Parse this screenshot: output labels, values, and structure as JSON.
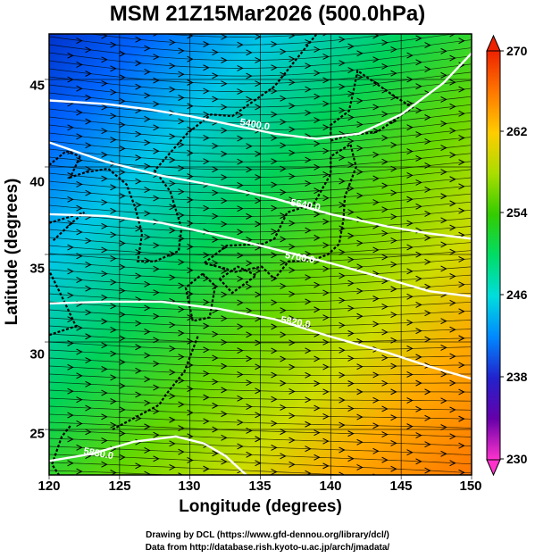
{
  "title": "MSM 21Z15Mar2026 (500.0hPa)",
  "x_axis": {
    "label": "Longitude (degrees)",
    "ticks": [
      "120",
      "125",
      "130",
      "135",
      "140",
      "145",
      "150"
    ]
  },
  "y_axis": {
    "label": "Latitude  (degrees)",
    "ticks": [
      "45",
      "40",
      "35",
      "30",
      "25"
    ]
  },
  "colorbar": {
    "ticks": [
      "270",
      "262",
      "254",
      "246",
      "238",
      "230"
    ],
    "min": 230,
    "max": 270,
    "colors": [
      "#ff33cc",
      "#6600aa",
      "#2222cc",
      "#0088ff",
      "#00dddd",
      "#00dd66",
      "#33cc00",
      "#aadd00",
      "#ffcc00",
      "#ff7700",
      "#ee2200"
    ]
  },
  "extent": {
    "lon": [
      120,
      150
    ],
    "lat": [
      22.4,
      47.6
    ]
  },
  "contours": [
    {
      "label": "5400.0",
      "label_lon": 134.6,
      "label_lat": 42.4,
      "path": [
        [
          120,
          43.8
        ],
        [
          124,
          43.6
        ],
        [
          127,
          43.3
        ],
        [
          130,
          42.9
        ],
        [
          133,
          42.4
        ],
        [
          136,
          41.9
        ],
        [
          139,
          41.6
        ],
        [
          142,
          41.9
        ],
        [
          145,
          43.0
        ],
        [
          148,
          44.8
        ],
        [
          150,
          46.5
        ]
      ]
    },
    {
      "label": "5640.0",
      "label_lon": 138.2,
      "label_lat": 37.8,
      "path": [
        [
          120,
          41.4
        ],
        [
          124,
          40.3
        ],
        [
          128,
          39.5
        ],
        [
          132,
          38.9
        ],
        [
          136,
          38.2
        ],
        [
          140,
          37.3
        ],
        [
          144,
          36.6
        ],
        [
          147,
          36.2
        ],
        [
          150,
          35.9
        ]
      ]
    },
    {
      "label": "5700.0",
      "label_lon": 137.8,
      "label_lat": 34.8,
      "path": [
        [
          120,
          37.3
        ],
        [
          124,
          37.2
        ],
        [
          128,
          36.8
        ],
        [
          132,
          36.1
        ],
        [
          136,
          35.3
        ],
        [
          140,
          34.5
        ],
        [
          144,
          33.6
        ],
        [
          147,
          32.9
        ],
        [
          150,
          32.6
        ]
      ]
    },
    {
      "label": "5820.0",
      "label_lon": 137.5,
      "label_lat": 31.1,
      "path": [
        [
          120,
          32.2
        ],
        [
          124,
          32.3
        ],
        [
          128,
          32.3
        ],
        [
          132,
          31.9
        ],
        [
          136,
          31.3
        ],
        [
          140,
          30.3
        ],
        [
          144,
          29.4
        ],
        [
          147,
          28.6
        ],
        [
          150,
          27.9
        ]
      ]
    },
    {
      "label": "5880.0",
      "label_lon": 123.5,
      "label_lat": 23.6,
      "path": [
        [
          120,
          23.2
        ],
        [
          123,
          23.6
        ],
        [
          126,
          24.3
        ],
        [
          129,
          24.6
        ],
        [
          131,
          24.2
        ],
        [
          132.5,
          23.5
        ],
        [
          134,
          22.4
        ]
      ]
    }
  ],
  "credits": [
    "Drawing by DCL (https://www.gfd-dennou.org/library/dcl/)",
    "Data from http://database.rish.kyoto-u.ac.jp/arch/jmadata/"
  ]
}
